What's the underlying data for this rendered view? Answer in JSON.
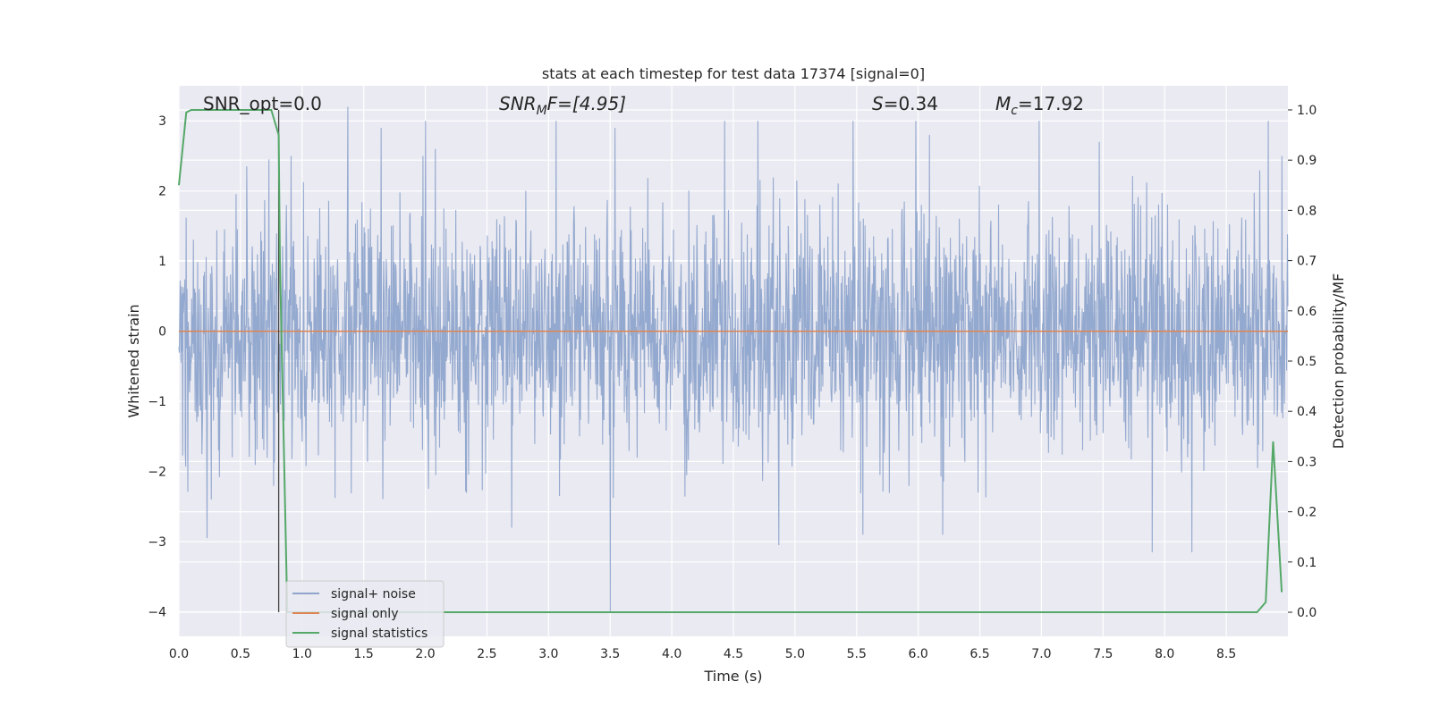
{
  "chart_data": {
    "type": "line",
    "title": "stats at each timestep for test data 17374 [signal=0]",
    "xlabel": "Time (s)",
    "ylabel_left": "Whitened strain",
    "ylabel_right": "Detection probability/MF",
    "xlim": [
      0.0,
      9.0
    ],
    "ylim_left": [
      -4.35,
      3.5
    ],
    "ylim_right": [
      -0.048,
      1.048
    ],
    "x_ticks": [
      "0.0",
      "0.5",
      "1.0",
      "1.5",
      "2.0",
      "2.5",
      "3.0",
      "3.5",
      "4.0",
      "4.5",
      "5.0",
      "5.5",
      "6.0",
      "6.5",
      "7.0",
      "7.5",
      "8.0",
      "8.5"
    ],
    "y_left_ticks": [
      "3",
      "2",
      "1",
      "0",
      "−1",
      "−2",
      "−3",
      "−4"
    ],
    "y_right_ticks": [
      "1.0",
      "0.9",
      "0.8",
      "0.7",
      "0.6",
      "0.5",
      "0.4",
      "0.3",
      "0.2",
      "0.1",
      "0.0"
    ],
    "grid": true,
    "legend_position": "lower-left",
    "annotations": {
      "snr_opt": "SNR_opt=0.0",
      "snr_mf_label": "SNR",
      "snr_mf_sub": "M",
      "snr_mf_value": "F=[4.95]",
      "s_label": "S",
      "s_value": "=0.34",
      "mc_label": "M",
      "mc_sub": "c",
      "mc_value": "=17.92"
    },
    "vertical_marker_x": 0.81,
    "series": [
      {
        "name": "signal+ noise",
        "color": "#8fa5cc",
        "description_of_data": "whitened noise strain, approximately standard normal, range about -4 to 3.2",
        "peaks": [
          [
            0.23,
            -2.95
          ],
          [
            0.55,
            2.35
          ],
          [
            0.73,
            2.45
          ],
          [
            0.91,
            2.5
          ],
          [
            1.37,
            3.2
          ],
          [
            1.64,
            2.9
          ],
          [
            1.98,
            2.5
          ],
          [
            2.0,
            3.0
          ],
          [
            2.08,
            2.6
          ],
          [
            2.7,
            -2.8
          ],
          [
            3.06,
            3.0
          ],
          [
            3.5,
            -4.0
          ],
          [
            3.54,
            2.9
          ],
          [
            4.43,
            3.0
          ],
          [
            4.7,
            3.0
          ],
          [
            4.87,
            -3.05
          ],
          [
            5.47,
            3.0
          ],
          [
            5.55,
            -2.9
          ],
          [
            5.98,
            3.0
          ],
          [
            6.09,
            2.8
          ],
          [
            6.2,
            -2.9
          ],
          [
            6.98,
            3.0
          ],
          [
            7.47,
            2.7
          ],
          [
            7.9,
            -3.15
          ],
          [
            8.22,
            -3.15
          ],
          [
            8.84,
            3.0
          ],
          [
            8.95,
            2.5
          ]
        ]
      },
      {
        "name": "signal only",
        "color": "#dd8452",
        "x": [
          0.0,
          9.0
        ],
        "y": [
          0.0,
          0.0
        ]
      },
      {
        "name": "signal statistics",
        "color": "#55a868",
        "axis": "right",
        "x": [
          0.0,
          0.06,
          0.1,
          0.2,
          0.3,
          0.4,
          0.5,
          0.6,
          0.7,
          0.75,
          0.81,
          0.82,
          0.88,
          1.0,
          2.0,
          3.0,
          4.0,
          5.0,
          6.0,
          7.0,
          8.0,
          8.5,
          8.75,
          8.82,
          8.88,
          8.95
        ],
        "y": [
          0.85,
          0.995,
          1.0,
          1.0,
          1.0,
          1.0,
          1.0,
          1.0,
          1.0,
          1.0,
          0.95,
          0.7,
          0.0,
          0.0,
          0.0,
          0.0,
          0.0,
          0.0,
          0.0,
          0.0,
          0.0,
          0.0,
          0.0,
          0.02,
          0.34,
          0.04
        ]
      }
    ]
  }
}
